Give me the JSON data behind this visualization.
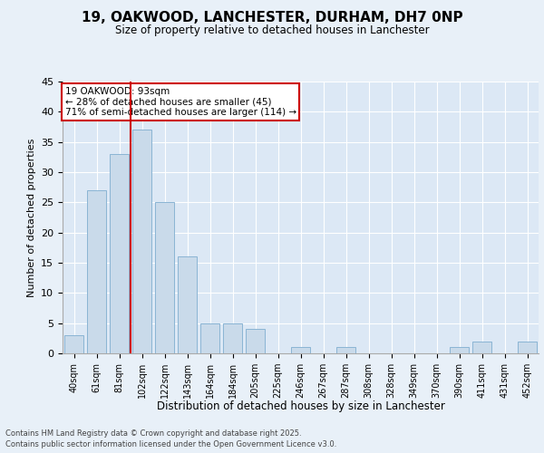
{
  "title1": "19, OAKWOOD, LANCHESTER, DURHAM, DH7 0NP",
  "title2": "Size of property relative to detached houses in Lanchester",
  "xlabel": "Distribution of detached houses by size in Lanchester",
  "ylabel": "Number of detached properties",
  "categories": [
    "40sqm",
    "61sqm",
    "81sqm",
    "102sqm",
    "122sqm",
    "143sqm",
    "164sqm",
    "184sqm",
    "205sqm",
    "225sqm",
    "246sqm",
    "267sqm",
    "287sqm",
    "308sqm",
    "328sqm",
    "349sqm",
    "370sqm",
    "390sqm",
    "411sqm",
    "431sqm",
    "452sqm"
  ],
  "values": [
    3,
    27,
    33,
    37,
    25,
    16,
    5,
    5,
    4,
    0,
    1,
    0,
    1,
    0,
    0,
    0,
    0,
    1,
    2,
    0,
    2
  ],
  "bar_color": "#c9daea",
  "bar_edgecolor": "#8ab4d4",
  "bg_color": "#dce8f5",
  "grid_color": "#ffffff",
  "red_line_x": 2.5,
  "annotation_title": "19 OAKWOOD: 93sqm",
  "annotation_line1": "← 28% of detached houses are smaller (45)",
  "annotation_line2": "71% of semi-detached houses are larger (114) →",
  "annotation_box_color": "#ffffff",
  "annotation_border_color": "#cc0000",
  "red_line_color": "#cc0000",
  "footer1": "Contains HM Land Registry data © Crown copyright and database right 2025.",
  "footer2": "Contains public sector information licensed under the Open Government Licence v3.0.",
  "fig_bg_color": "#e8f0f8",
  "ylim": [
    0,
    45
  ],
  "yticks": [
    0,
    5,
    10,
    15,
    20,
    25,
    30,
    35,
    40,
    45
  ]
}
